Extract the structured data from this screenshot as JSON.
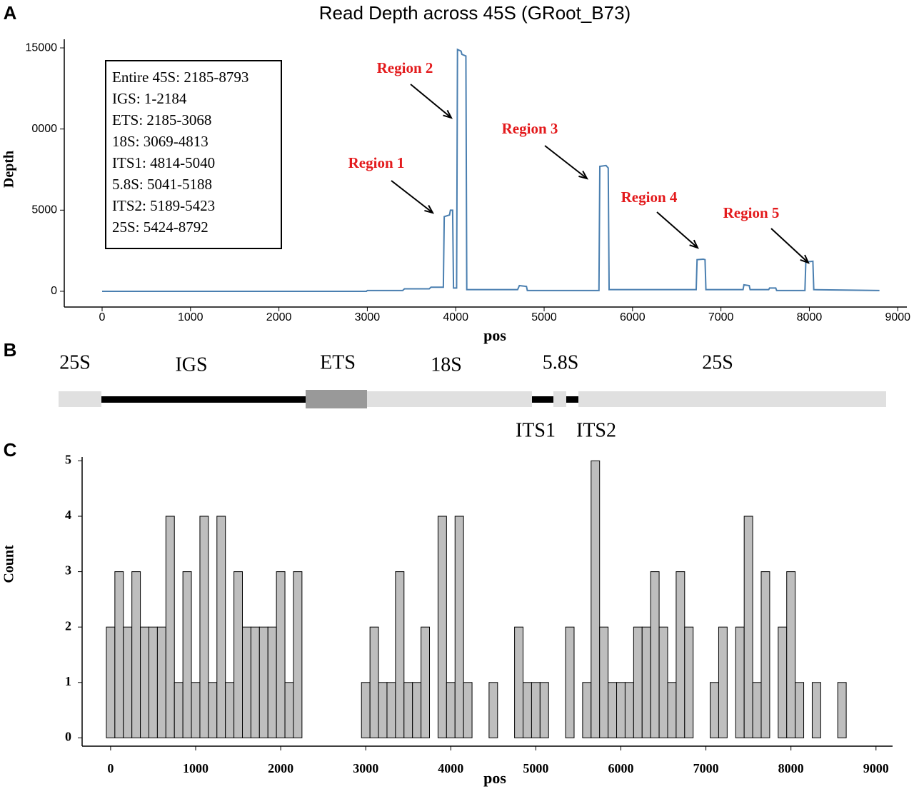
{
  "chart_data": [
    {
      "type": "line",
      "panel": "A",
      "title": "Read Depth across 45S (GRoot_B73)",
      "x_label": "pos",
      "y_label": "Depth",
      "annotation_box": [
        "Entire 45S: 2185-8793",
        "IGS: 1-2184",
        "ETS: 2185-3068",
        "18S: 3069-4813",
        "ITS1: 4814-5040",
        "5.8S: 5041-5188",
        "ITS2: 5189-5423",
        "25S: 5424-8792"
      ],
      "annotations": [
        "Region 1",
        "Region 2",
        "Region 3",
        "Region 4",
        "Region 5"
      ],
      "x": [
        0,
        2990,
        3000,
        3400,
        3420,
        3700,
        3720,
        3860,
        3870,
        3930,
        3940,
        3965,
        3975,
        4010,
        4020,
        4060,
        4070,
        4115,
        4125,
        4700,
        4720,
        4800,
        4810,
        5620,
        5630,
        5700,
        5725,
        5735,
        6720,
        6730,
        6800,
        6820,
        6830,
        7250,
        7260,
        7320,
        7330,
        7540,
        7550,
        7620,
        7630,
        7950,
        7960,
        8040,
        8050,
        8793
      ],
      "series": [
        {
          "color": "#4a7fb0",
          "values": [
            0,
            0,
            50,
            50,
            150,
            150,
            250,
            250,
            4600,
            4700,
            5000,
            5000,
            200,
            200,
            14900,
            14800,
            14600,
            14500,
            100,
            100,
            350,
            300,
            50,
            50,
            7700,
            7750,
            7600,
            100,
            100,
            1950,
            1980,
            1950,
            100,
            100,
            400,
            350,
            100,
            100,
            200,
            200,
            50,
            50,
            1800,
            1850,
            100,
            50
          ]
        }
      ],
      "xlim": [
        -428,
        9103
      ],
      "xticks": [
        0,
        1000,
        2000,
        3000,
        4000,
        5000,
        6000,
        7000,
        8000,
        9000
      ],
      "ylim": [
        -970,
        15530
      ],
      "yticks": [
        0,
        5000,
        {
          "value": 10000,
          "label": "0000"
        },
        15000
      ],
      "grid": false
    },
    {
      "type": "histogram",
      "panel": "C",
      "x_label": "pos",
      "y_label": "Count",
      "color": "#bebebe",
      "bins": [
        -50,
        50,
        150,
        250,
        350,
        450,
        550,
        650,
        750,
        850,
        950,
        1050,
        1150,
        1250,
        1350,
        1450,
        1550,
        1650,
        1750,
        1850,
        1950,
        2050,
        2150,
        2250,
        2350,
        2450,
        2550,
        2650,
        2750,
        2850,
        2950,
        3050,
        3150,
        3250,
        3350,
        3450,
        3550,
        3650,
        3750,
        3850,
        3950,
        4050,
        4150,
        4250,
        4350,
        4450,
        4550,
        4650,
        4750,
        4850,
        4950,
        5050,
        5150,
        5250,
        5350,
        5450,
        5550,
        5650,
        5750,
        5850,
        5950,
        6050,
        6150,
        6250,
        6350,
        6450,
        6550,
        6650,
        6750,
        6850,
        6950,
        7050,
        7150,
        7250,
        7350,
        7450,
        7550,
        7650,
        7750,
        7850,
        7950,
        8050,
        8150,
        8250,
        8350,
        8450,
        8550,
        8650
      ],
      "values": [
        2,
        3,
        2,
        3,
        2,
        2,
        2,
        4,
        1,
        3,
        1,
        4,
        1,
        4,
        1,
        3,
        2,
        2,
        2,
        2,
        3,
        1,
        3,
        0,
        0,
        0,
        0,
        0,
        0,
        0,
        1,
        2,
        1,
        1,
        3,
        1,
        1,
        2,
        0,
        4,
        1,
        4,
        1,
        0,
        0,
        1,
        0,
        0,
        2,
        1,
        1,
        1,
        0,
        0,
        2,
        0,
        1,
        5,
        2,
        1,
        1,
        1,
        2,
        2,
        3,
        2,
        1,
        3,
        2,
        0,
        0,
        1,
        2,
        0,
        2,
        4,
        1,
        3,
        0,
        2,
        3,
        1,
        0,
        1,
        0,
        0,
        1
      ],
      "xlim": [
        -335,
        9195
      ],
      "xticks": [
        0,
        1000,
        2000,
        3000,
        4000,
        5000,
        6000,
        7000,
        8000,
        9000
      ],
      "ylim": [
        -0.15,
        5.07
      ],
      "yticks": [
        0,
        1,
        2,
        3,
        4,
        5
      ],
      "grid": false
    }
  ],
  "gene_map": {
    "panel": "B",
    "labels_above": [
      "25S",
      "IGS",
      "ETS",
      "18S",
      "5.8S",
      "25S"
    ],
    "labels_below": [
      "ITS1",
      "ITS2"
    ]
  }
}
